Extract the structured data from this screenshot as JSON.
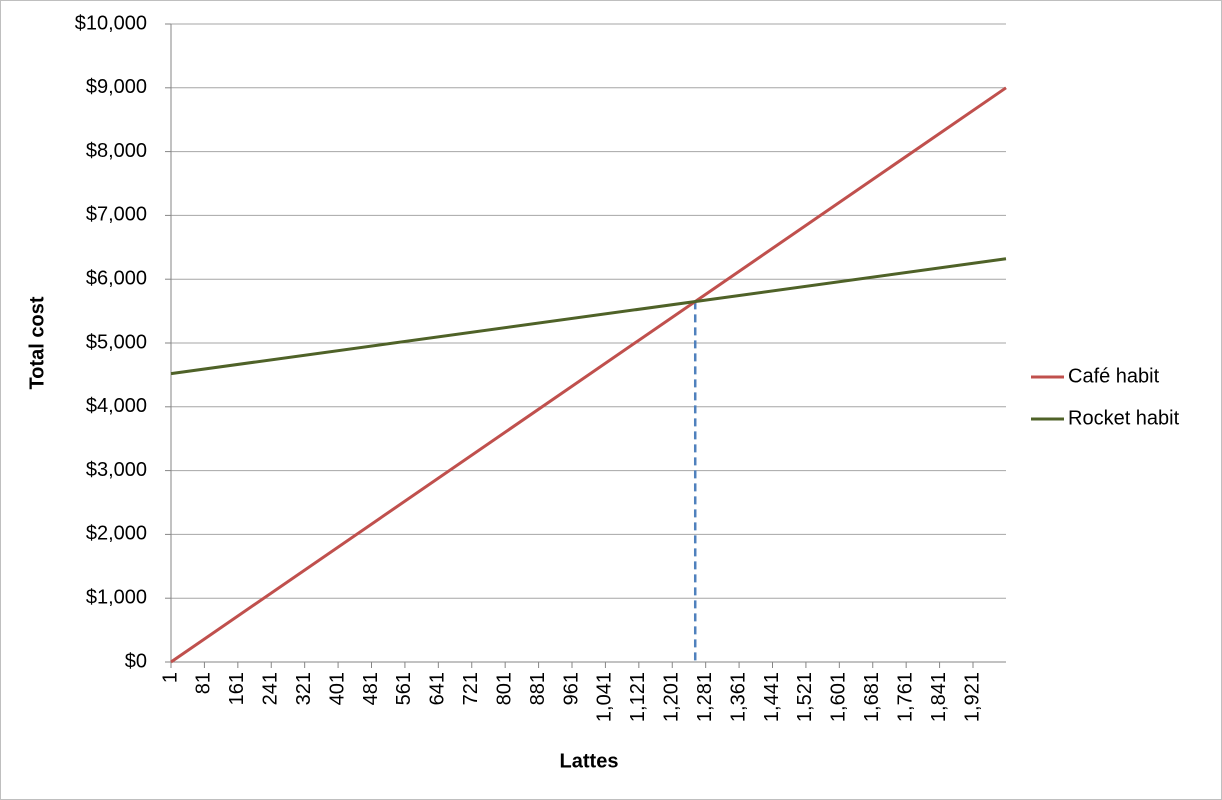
{
  "chart_data": {
    "type": "line",
    "x_label": "Lattes",
    "y_label": "Total cost",
    "xlim": [
      1,
      2000
    ],
    "xticks": [
      1,
      81,
      161,
      241,
      321,
      401,
      481,
      561,
      641,
      721,
      801,
      881,
      961,
      {
        "value": 1041,
        "label": "1,041"
      },
      {
        "value": 1121,
        "label": "1,121"
      },
      {
        "value": 1201,
        "label": "1,201"
      },
      {
        "value": 1281,
        "label": "1,281"
      },
      {
        "value": 1361,
        "label": "1,361"
      },
      {
        "value": 1441,
        "label": "1,441"
      },
      {
        "value": 1521,
        "label": "1,521"
      },
      {
        "value": 1601,
        "label": "1,601"
      },
      {
        "value": 1681,
        "label": "1,681"
      },
      {
        "value": 1761,
        "label": "1,761"
      },
      {
        "value": 1841,
        "label": "1,841"
      },
      {
        "value": 1921,
        "label": "1,921"
      }
    ],
    "ylim": [
      0,
      10000
    ],
    "yticks": [
      {
        "value": 0,
        "label": "$0"
      },
      {
        "value": 1000,
        "label": "$1,000"
      },
      {
        "value": 2000,
        "label": "$2,000"
      },
      {
        "value": 3000,
        "label": "$3,000"
      },
      {
        "value": 4000,
        "label": "$4,000"
      },
      {
        "value": 5000,
        "label": "$5,000"
      },
      {
        "value": 6000,
        "label": "$6,000"
      },
      {
        "value": 7000,
        "label": "$7,000"
      },
      {
        "value": 8000,
        "label": "$8,000"
      },
      {
        "value": 9000,
        "label": "$9,000"
      },
      {
        "value": 10000,
        "label": "$10,000"
      }
    ],
    "grid": true,
    "legend": "right",
    "series": [
      {
        "name": "Café habit",
        "color": "#c0504d",
        "x": [
          1,
          2000
        ],
        "values": [
          0,
          9000
        ]
      },
      {
        "name": "Rocket habit",
        "color": "#4f6228",
        "x": [
          1,
          2000
        ],
        "values": [
          4520,
          6320
        ]
      }
    ],
    "reference_line": {
      "x": 1256,
      "y": 5652,
      "color": "#4f81bd"
    }
  }
}
